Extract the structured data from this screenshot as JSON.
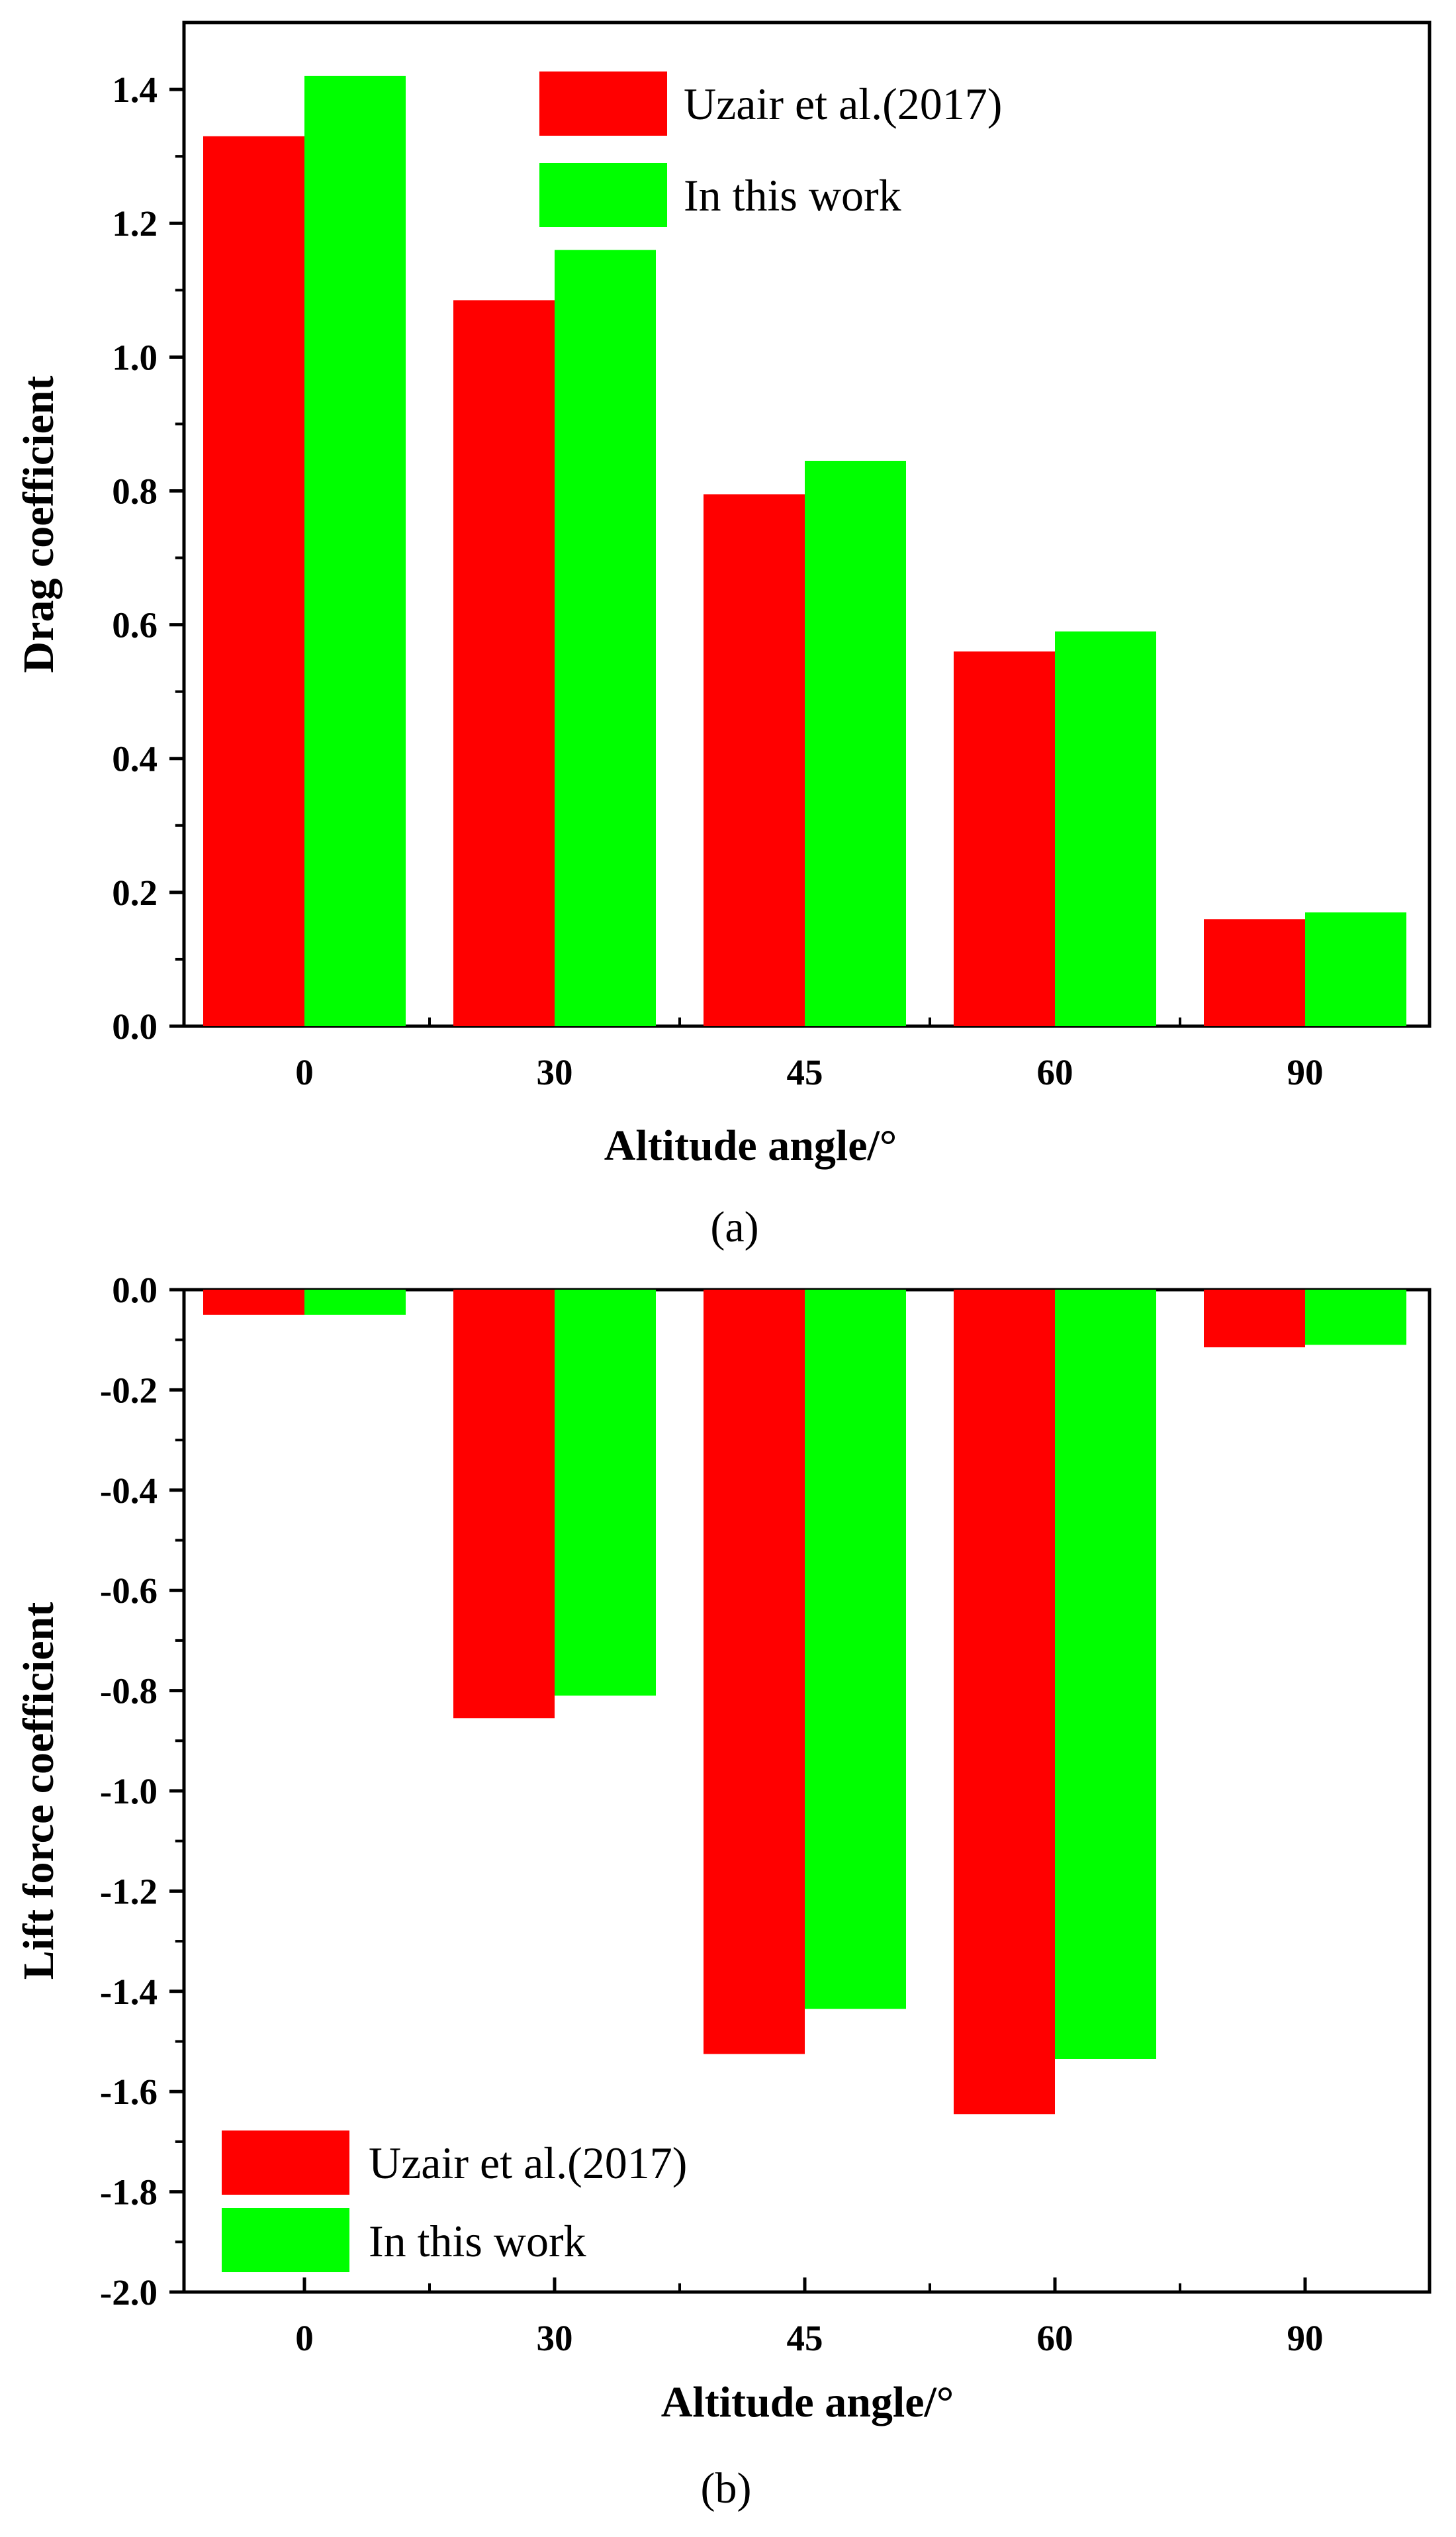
{
  "chart_data": [
    {
      "type": "bar",
      "panel_label": "(a)",
      "categories": [
        "0",
        "30",
        "45",
        "60",
        "90"
      ],
      "series": [
        {
          "name": "Uzair et al.(2017)",
          "color": "#ff0000",
          "values": [
            1.33,
            1.085,
            0.795,
            0.56,
            0.16
          ]
        },
        {
          "name": "In this work",
          "color": "#00ff00",
          "values": [
            1.42,
            1.16,
            0.845,
            0.59,
            0.17
          ]
        }
      ],
      "xlabel": "Altitude angle/°",
      "ylabel": "Drag coefficient",
      "ylim": [
        0,
        1.5
      ],
      "yticks": [
        "0.0",
        "0.2",
        "0.4",
        "0.6",
        "0.8",
        "1.0",
        "1.2",
        "1.4"
      ],
      "ytick_values": [
        0,
        0.2,
        0.4,
        0.6,
        0.8,
        1.0,
        1.2,
        1.4
      ],
      "legend_position": "top-center",
      "grid": false
    },
    {
      "type": "bar",
      "panel_label": "(b)",
      "categories": [
        "0",
        "30",
        "45",
        "60",
        "90"
      ],
      "series": [
        {
          "name": "Uzair et al.(2017)",
          "color": "#ff0000",
          "values": [
            -0.05,
            -0.855,
            -1.525,
            -1.645,
            -0.115
          ]
        },
        {
          "name": "In this work",
          "color": "#00ff00",
          "values": [
            -0.05,
            -0.81,
            -1.435,
            -1.535,
            -0.11
          ]
        }
      ],
      "xlabel": "Altitude angle/°",
      "ylabel": "Lift force coefficient",
      "ylim": [
        -2.0,
        0.0
      ],
      "yticks": [
        "0.0",
        "-0.2",
        "-0.4",
        "-0.6",
        "-0.8",
        "-1.0",
        "-1.2",
        "-1.4",
        "-1.6",
        "-1.8",
        "-2.0"
      ],
      "ytick_values": [
        0,
        -0.2,
        -0.4,
        -0.6,
        -0.8,
        -1.0,
        -1.2,
        -1.4,
        -1.6,
        -1.8,
        -2.0
      ],
      "legend_position": "bottom-left",
      "grid": false
    }
  ]
}
